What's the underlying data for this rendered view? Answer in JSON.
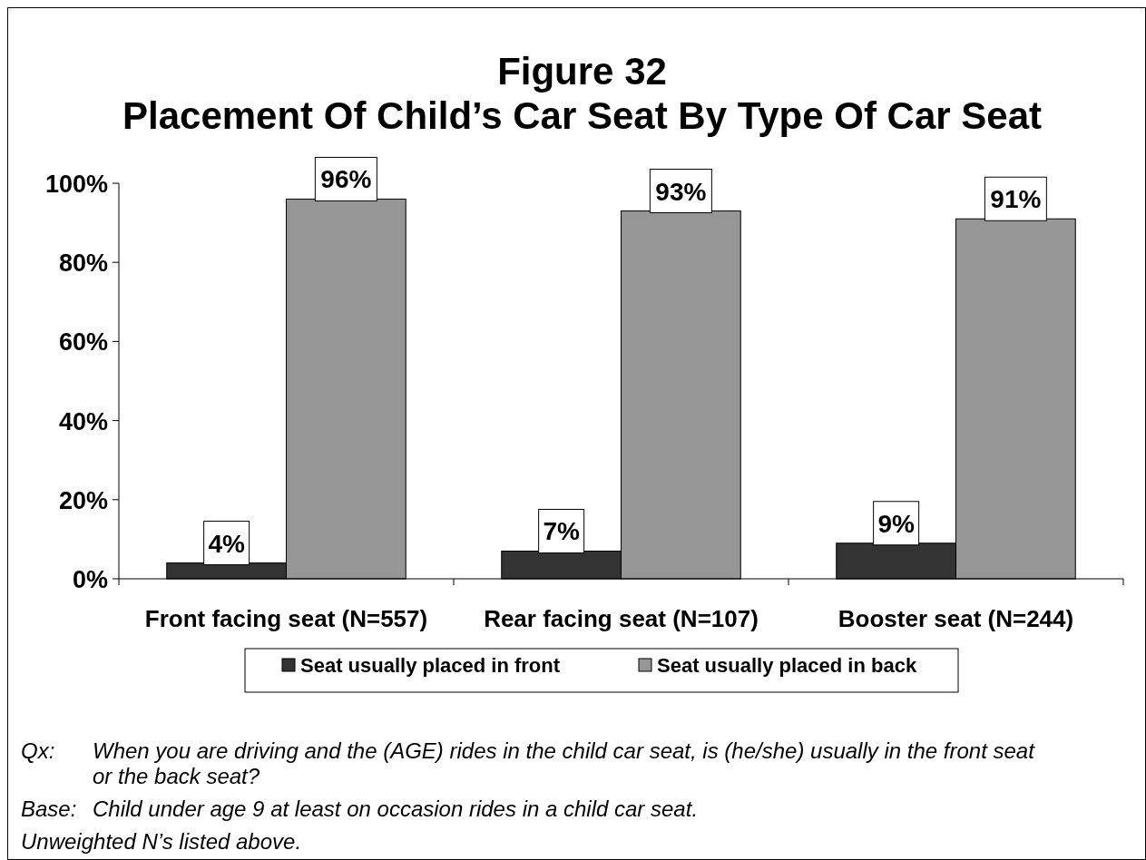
{
  "chart_data": {
    "type": "bar",
    "title": "Figure 32\nPlacement Of Child’s Car Seat By Type Of Car Seat",
    "categories": [
      "Front facing seat (N=557)",
      "Rear facing seat (N=107)",
      "Booster seat (N=244)"
    ],
    "series": [
      {
        "name": "Seat usually placed in front",
        "color": "#333333",
        "values": [
          4,
          7,
          9
        ],
        "value_labels": [
          "4%",
          "7%",
          "9%"
        ]
      },
      {
        "name": "Seat usually placed in back",
        "color": "#969696",
        "values": [
          96,
          93,
          91
        ],
        "value_labels": [
          "96%",
          "93%",
          "91%"
        ]
      }
    ],
    "ylim": [
      0,
      100
    ],
    "yticks": [
      {
        "value": 0,
        "label": "0%"
      },
      {
        "value": 20,
        "label": "20%"
      },
      {
        "value": 40,
        "label": "40%"
      },
      {
        "value": 60,
        "label": "60%"
      },
      {
        "value": 80,
        "label": "80%"
      },
      {
        "value": 100,
        "label": "100%"
      }
    ],
    "grid": false,
    "legend": "bottom",
    "annotations": [
      "Qx: When you are driving and the (AGE) rides in the child car seat, is (he/she) usually in the front seat or the back seat?",
      "Base: Child under age 9 at least on occasion rides in a child car seat.",
      "Unweighted N’s listed above."
    ]
  }
}
